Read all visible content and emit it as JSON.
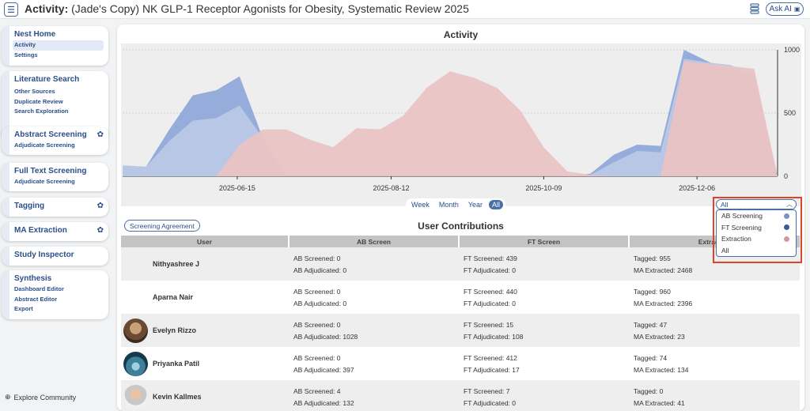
{
  "header": {
    "title_prefix": "Activity:",
    "title_rest": "(Jade's Copy) NK GLP-1 Receptor Agonists for Obesity, Systematic Review 2025",
    "ask_ai": "Ask AI",
    "menu_icon": "hamburger-icon",
    "db_icon": "database-icon"
  },
  "sidebar": {
    "nest": {
      "title": "Nest Home",
      "items": [
        "Activity",
        "Settings"
      ]
    },
    "lit": {
      "title": "Literature Search",
      "items": [
        "Other Sources",
        "Duplicate Review",
        "Search Exploration"
      ]
    },
    "abstract": {
      "title": "Abstract Screening",
      "items": [
        "Adjudicate Screening"
      ]
    },
    "fulltext": {
      "title": "Full Text Screening",
      "items": [
        "Adjudicate Screening"
      ]
    },
    "tagging": {
      "title": "Tagging"
    },
    "ma": {
      "title": "MA Extraction"
    },
    "inspector": {
      "title": "Study Inspector"
    },
    "synthesis": {
      "title": "Synthesis",
      "items": [
        "Dashboard Editor",
        "Abstract Editor",
        "Export"
      ]
    },
    "explore": "Explore Community"
  },
  "chart_data": {
    "type": "area",
    "title": "Activity",
    "x_ticks": [
      "2025-06-15",
      "2025-08-12",
      "2025-10-09",
      "2025-12-06"
    ],
    "y_ticks": [
      "0",
      "500",
      "1000"
    ],
    "ylim": [
      0,
      1000
    ],
    "y_axis_side": "right",
    "grid": true,
    "series": [
      {
        "name": "FT Screening",
        "color": "#90a8d8",
        "values": [
          85,
          75,
          370,
          640,
          680,
          790,
          300,
          0,
          0,
          0,
          0,
          0,
          0,
          0,
          0,
          0,
          0,
          0,
          0,
          0,
          20,
          170,
          250,
          240,
          1000,
          910,
          820,
          800,
          0
        ]
      },
      {
        "name": "AB Screening",
        "color": "#b8c8e6",
        "values": [
          85,
          75,
          280,
          440,
          460,
          560,
          300,
          0,
          0,
          0,
          0,
          0,
          0,
          0,
          0,
          0,
          0,
          0,
          0,
          0,
          10,
          110,
          200,
          190,
          930,
          900,
          880,
          800,
          0
        ]
      },
      {
        "name": "Extraction",
        "color": "#e9c3c4",
        "values": [
          0,
          0,
          0,
          0,
          0,
          250,
          370,
          370,
          290,
          230,
          380,
          370,
          480,
          700,
          830,
          780,
          700,
          520,
          230,
          40,
          10,
          0,
          0,
          0,
          910,
          890,
          870,
          850,
          0
        ]
      }
    ]
  },
  "range_buttons": [
    "Week",
    "Month",
    "Year",
    "All"
  ],
  "range_selected": "All",
  "screening_agreement": "Screening Agreement",
  "contributions_title": "User Contributions",
  "table": {
    "headers": [
      "User",
      "AB Screen",
      "FT Screen",
      "Extraction"
    ],
    "rows": [
      {
        "name": "Nithyashree J",
        "ab1": "AB Screened: 0",
        "ab2": "AB Adjudicated: 0",
        "ft1": "FT Screened: 439",
        "ft2": "FT Adjudicated: 0",
        "ex1": "Tagged: 955",
        "ex2": "MA Extracted: 2468"
      },
      {
        "name": "Aparna Nair",
        "ab1": "AB Screened: 0",
        "ab2": "AB Adjudicated: 0",
        "ft1": "FT Screened: 440",
        "ft2": "FT Adjudicated: 0",
        "ex1": "Tagged: 960",
        "ex2": "MA Extracted: 2396"
      },
      {
        "name": "Evelyn Rizzo",
        "ab1": "AB Screened: 0",
        "ab2": "AB Adjudicated: 1028",
        "ft1": "FT Screened: 15",
        "ft2": "FT Adjudicated: 108",
        "ex1": "Tagged: 47",
        "ex2": "MA Extracted: 23"
      },
      {
        "name": "Priyanka Patil",
        "ab1": "AB Screened: 0",
        "ab2": "AB Adjudicated: 397",
        "ft1": "FT Screened: 412",
        "ft2": "FT Adjudicated: 17",
        "ex1": "Tagged: 74",
        "ex2": "MA Extracted: 134"
      },
      {
        "name": "Kevin Kallmes",
        "ab1": "AB Screened: 4",
        "ab2": "AB Adjudicated: 132",
        "ft1": "FT Screened: 7",
        "ft2": "FT Adjudicated: 0",
        "ex1": "Tagged: 0",
        "ex2": "MA Extracted: 41"
      }
    ]
  },
  "dropdown": {
    "selected": "All",
    "options": [
      {
        "label": "AB Screening",
        "color": "#7a92c8"
      },
      {
        "label": "FT Screening",
        "color": "#3b5a97"
      },
      {
        "label": "Extraction",
        "color": "#d4989a"
      },
      {
        "label": "All",
        "color": ""
      }
    ]
  },
  "explore_icon": "globe-icon"
}
